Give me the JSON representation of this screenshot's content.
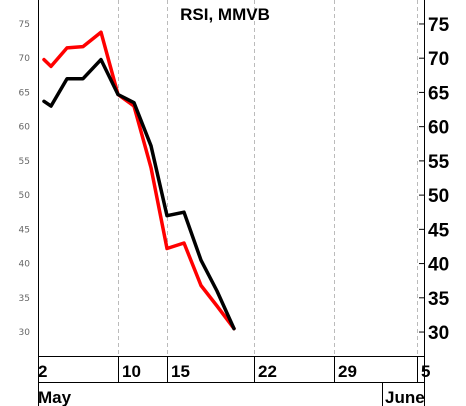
{
  "chart_data": {
    "type": "line",
    "title": "RSI, MMVB",
    "xlabel": "",
    "ylabel": "",
    "ylim": [
      26.5,
      78.5
    ],
    "y_ticks": [
      30,
      35,
      40,
      45,
      50,
      55,
      60,
      65,
      70,
      75
    ],
    "y_tick_labels": [
      "30",
      "35",
      "40",
      "45",
      "50",
      "55",
      "60",
      "65",
      "70",
      "75"
    ],
    "x_tick_labels": [
      "2",
      "10",
      "15",
      "22",
      "29",
      "5"
    ],
    "month_labels": [
      "May",
      "June"
    ],
    "grid": true,
    "x": [
      "May 2",
      "May 3",
      "May 4",
      "May 7",
      "May 8",
      "May 10",
      "May 11",
      "May 14",
      "May 15",
      "May 16",
      "May 17",
      "May 18",
      "May 21"
    ],
    "series": [
      {
        "color": "#ff0000",
        "values": [
          69.8,
          68.8,
          71.5,
          71.7,
          73.8,
          64.7,
          63.0,
          54.0,
          42.2,
          43.0,
          36.8,
          33.8,
          30.5
        ]
      },
      {
        "color": "#000000",
        "values": [
          63.7,
          63.0,
          67.0,
          67.0,
          69.8,
          64.7,
          63.5,
          57.2,
          47.0,
          47.5,
          40.5,
          36.0,
          30.5
        ]
      }
    ]
  }
}
